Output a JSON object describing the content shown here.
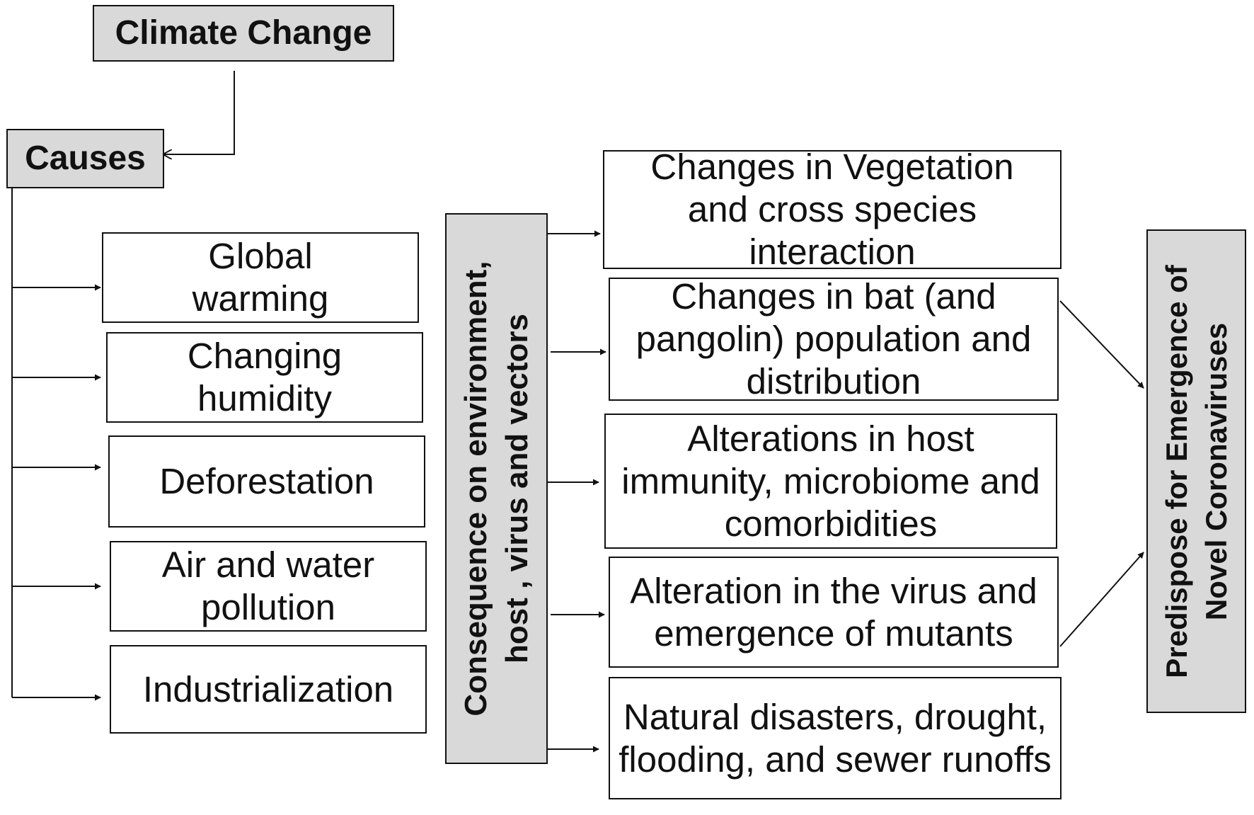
{
  "root": {
    "label": "Climate Change"
  },
  "causes": {
    "label": "Causes",
    "items": [
      "Global warming",
      "Changing humidity",
      "Deforestation",
      "Air and water pollution",
      "Industrialization"
    ]
  },
  "consequence": {
    "label": "Consequence on environment, host , virus and vectors"
  },
  "effects": {
    "items": [
      "Changes in Vegetation and cross species interaction",
      "Changes in bat (and pangolin) population and distribution",
      "Alterations in host immunity, microbiome and comorbidities",
      "Alteration in the virus and emergence of mutants",
      "Natural disasters, drought, flooding, and sewer runoffs"
    ]
  },
  "outcome": {
    "label": "Predispose for Emergence of Novel Coronaviruses"
  },
  "colors": {
    "box_fill": "#ffffff",
    "header_fill": "#d9d9d9",
    "stroke": "#111111"
  }
}
